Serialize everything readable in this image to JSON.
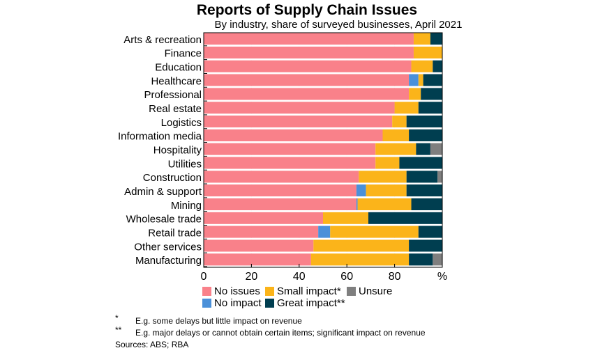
{
  "chart_data": {
    "type": "bar",
    "orientation": "horizontal",
    "stacked": true,
    "title": "Reports of Supply Chain Issues",
    "subtitle": "By industry, share of surveyed businesses, April 2021",
    "xlabel": "",
    "ylabel": "",
    "x_unit": "%",
    "xlim": [
      0,
      100
    ],
    "xticks": [
      0,
      20,
      40,
      60,
      80
    ],
    "xtick_labels": [
      "0",
      "20",
      "40",
      "60",
      "80"
    ],
    "grid": true,
    "legend_placement": "bottom",
    "categories": [
      "Arts & recreation",
      "Finance",
      "Education",
      "Healthcare",
      "Professional",
      "Real estate",
      "Logistics",
      "Information media",
      "Hospitality",
      "Utilities",
      "Construction",
      "Admin & support",
      "Mining",
      "Wholesale trade",
      "Retail trade",
      "Other services",
      "Manufacturing"
    ],
    "series": [
      {
        "name": "No issues",
        "color": "#F9818A",
        "values": [
          88,
          88,
          87,
          86,
          86,
          80,
          79,
          75,
          72,
          72,
          65,
          64,
          64,
          50,
          48,
          46,
          45
        ]
      },
      {
        "name": "No impact",
        "color": "#4A90D9",
        "values": [
          0,
          0,
          0,
          4,
          0,
          0,
          0,
          0,
          0,
          0,
          0,
          4,
          0.5,
          0,
          5,
          0,
          0
        ]
      },
      {
        "name": "Small impact*",
        "color": "#FBB41A",
        "values": [
          7,
          12,
          9,
          2,
          5,
          10,
          6,
          11,
          17,
          10,
          20,
          17,
          22.5,
          19,
          37,
          40,
          41
        ]
      },
      {
        "name": "Great impact**",
        "color": "#003E50",
        "values": [
          5,
          0,
          4,
          8,
          9,
          10,
          15,
          14,
          6,
          18,
          13,
          15,
          13,
          31,
          10,
          14,
          10
        ]
      },
      {
        "name": "Unsure",
        "color": "#7F7F7F",
        "values": [
          0,
          0,
          0,
          0,
          0,
          0,
          0,
          0,
          5,
          0,
          2,
          0,
          0,
          0,
          0,
          0,
          4
        ]
      }
    ],
    "legend": [
      {
        "label": "No issues",
        "color": "#F9818A"
      },
      {
        "label": "Small impact*",
        "color": "#FBB41A"
      },
      {
        "label": "Unsure",
        "color": "#7F7F7F"
      },
      {
        "label": "No impact",
        "color": "#4A90D9"
      },
      {
        "label": "Great impact**",
        "color": "#003E50"
      }
    ],
    "annotations": {
      "notes": [
        {
          "mark": "*",
          "text": "E.g. some delays but little impact on revenue"
        },
        {
          "mark": "**",
          "text": "E.g. major delays or cannot obtain certain items; significant impact on revenue"
        }
      ],
      "source": "Sources: ABS; RBA"
    }
  }
}
